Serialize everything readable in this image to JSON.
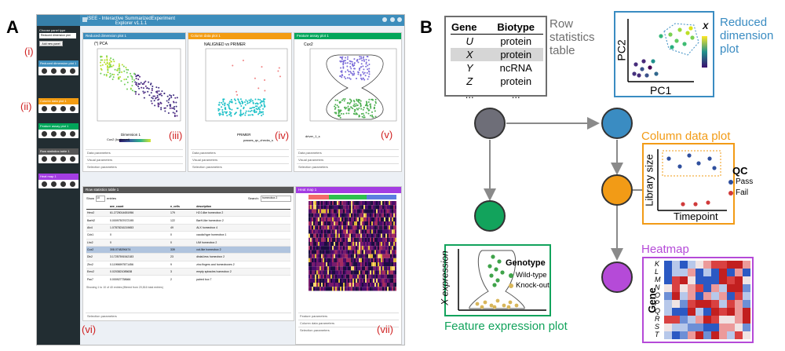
{
  "panel_labels": {
    "a": "A",
    "b": "B"
  },
  "screenshot": {
    "app_title": "iSEE - Interactive SummarizedExperiment Explorer v1.1.1",
    "sidebar": {
      "choose_label": "Choose panel type",
      "choose_value": "Reduced dimension plot",
      "add_button": "Add new panel",
      "items": [
        {
          "label": "Reduced dimension plot 1",
          "color": "#3c8dbc"
        },
        {
          "label": "Column data plot 1",
          "color": "#f39c12"
        },
        {
          "label": "Feature assay plot 1",
          "color": "#00a65a"
        },
        {
          "label": "Row statistics table 1",
          "color": "#555555"
        },
        {
          "label": "Heat map 1",
          "color": "#a33de2"
        }
      ]
    },
    "roman": [
      "(i)",
      "(ii)",
      "(iii)",
      "(iv)",
      "(v)",
      "(vi)",
      "(vii)"
    ],
    "panels": {
      "redim": {
        "title": "Reduced dimension plot 1",
        "plot_title": "(*) PCA",
        "xlabel": "Dimension 1",
        "ylabel": "Dimension 2",
        "legend": "Cux2 (log/count)"
      },
      "coldata": {
        "title": "Column data plot 1",
        "plot_title": "NALIGNED vs PRIMER",
        "xlabel": "PRIMER",
        "ylabel": "NALIGNED",
        "legend": "passes_qc_checks_s"
      },
      "featassay": {
        "title": "Feature assay plot 1",
        "plot_title": "Cux2",
        "ylabel": "Cux2 (log/count)",
        "xlabel": "driver_1_s"
      },
      "rowstat": {
        "title": "Row statistics table 1",
        "show": "Show",
        "entries": "entries",
        "search": "Search:",
        "search_value": "homeobox 2",
        "columns": [
          "",
          "ave_count",
          "n_cells",
          "description"
        ],
        "rows": [
          [
            "Hmx2",
            "61.2725014651956",
            "179",
            "H2.0-like homeobox 2"
          ],
          [
            "Barhl2",
            "0.00097507672195",
            "122",
            "BarH-like homeobox 2"
          ],
          [
            "Alx4",
            "1.07878216219653",
            "49",
            "ALX homeobox 4"
          ],
          [
            "Cdx1",
            "0",
            "0",
            "caudal type homeobox 1"
          ],
          [
            "Lhx2",
            "0",
            "0",
            "LIM homeobox 2"
          ],
          [
            "Cux2",
            "308.0748296474",
            "339",
            "cut-like homeobox 2"
          ],
          [
            "Dlx2",
            "3.17257591542183",
            "23",
            "distal-less homeobox 2"
          ],
          [
            "Zhx2",
            "0.11996997871456",
            "9",
            "zinc fingers and homeoboxes 2"
          ],
          [
            "Emx2",
            "0.0203821085638",
            "3",
            "empty spiracles homeobox 2"
          ],
          [
            "Pax7",
            "0.000927738666",
            "2",
            "paired box 7"
          ]
        ],
        "footer": "Showing 1 to 10 of 40 entries (filtered from 20,816 total entries)"
      },
      "heat": {
        "title": "Heat map 1"
      }
    },
    "param_rows": {
      "data": "Data parameters",
      "visual": "Visual parameters",
      "selection": "Selection parameters",
      "feature": "Feature parameters",
      "coldata": "Column data parameters"
    }
  },
  "diagram": {
    "table": {
      "headers": [
        "Gene",
        "Biotype"
      ],
      "rows": [
        [
          "U",
          "protein"
        ],
        [
          "X",
          "protein"
        ],
        [
          "Y",
          "ncRNA"
        ],
        [
          "Z",
          "protein"
        ],
        [
          "...",
          "..."
        ]
      ]
    },
    "row_stats_title": [
      "Row",
      "statistics",
      "table"
    ],
    "reduced_title": [
      "Reduced",
      "dimension",
      "plot"
    ],
    "reduced_axes": {
      "x": "PC1",
      "y": "PC2",
      "colorbar": "X"
    },
    "coldata_title": "Column data plot",
    "coldata_axes": {
      "x": "Timepoint",
      "y": "Library size"
    },
    "qc_legend": {
      "title": "QC",
      "pass": "Pass",
      "fail": "Fail"
    },
    "heatmap_title": "Heatmap",
    "heatmap_ylabel": "Gene",
    "heatmap_genes": [
      "K",
      "L",
      "M",
      "N",
      "O",
      "P",
      "Q",
      "R",
      "S",
      "T"
    ],
    "feature_title": "Feature expression plot",
    "feature_ylabel": "X expression",
    "genotype_legend": {
      "title": "Genotype",
      "wt": "Wild-type",
      "ko": "Knock-out"
    },
    "colors": {
      "gray": "#6e6e78",
      "blue": "#3a8cc2",
      "orange": "#f29b16",
      "green": "#12a35c",
      "purple": "#b54ad8"
    }
  }
}
